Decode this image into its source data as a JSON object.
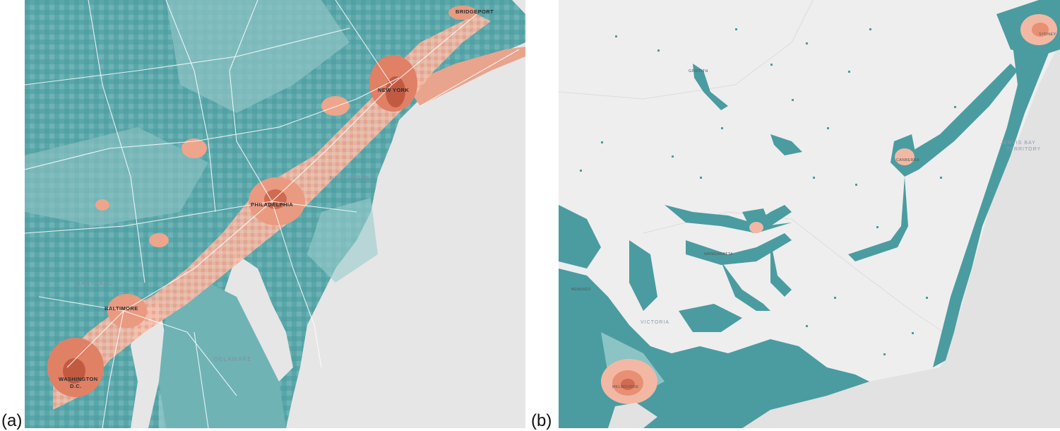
{
  "panels": [
    {
      "label": "(a)",
      "colors": {
        "land_dark": "#4a9ca0",
        "land_mid": "#6fb3b5",
        "land_light": "#a9d4d6",
        "urban_light": "#f2b8a4",
        "urban_mid": "#e88f74",
        "urban_dark": "#c25a42",
        "water": "#e6e6e6",
        "roads": "#ffffff"
      },
      "places": [
        {
          "name": "BRIDGEPORT",
          "kind": "city"
        },
        {
          "name": "NEW YORK",
          "kind": "city"
        },
        {
          "name": "NEW JERSEY",
          "kind": "region"
        },
        {
          "name": "PHILADELPHIA",
          "kind": "city"
        },
        {
          "name": "MARYLAND",
          "kind": "region"
        },
        {
          "name": "BALTIMORE",
          "kind": "city"
        },
        {
          "name": "DELAWARE",
          "kind": "region"
        },
        {
          "name": "WASHINGTON",
          "kind": "city"
        },
        {
          "name": "D.C.",
          "kind": "city"
        }
      ]
    },
    {
      "label": "(b)",
      "colors": {
        "background": "#eeeeee",
        "land": "#4a9ca0",
        "land_light": "#8cc3c5",
        "urban_light": "#f2b8a4",
        "urban_mid": "#e88f74",
        "water": "#e2e2e2"
      },
      "places": [
        {
          "name": "SYDNEY",
          "kind": "city"
        },
        {
          "name": "GRIFFITH",
          "kind": "city"
        },
        {
          "name": "CANBERRA",
          "kind": "city"
        },
        {
          "name": "JERVIS BAY",
          "kind": "region"
        },
        {
          "name": "TERRITORY",
          "kind": "region"
        },
        {
          "name": "WANGARATTA",
          "kind": "city"
        },
        {
          "name": "BENDIGO",
          "kind": "city"
        },
        {
          "name": "VICTORIA",
          "kind": "region"
        },
        {
          "name": "MELBOURNE",
          "kind": "city"
        }
      ]
    }
  ]
}
